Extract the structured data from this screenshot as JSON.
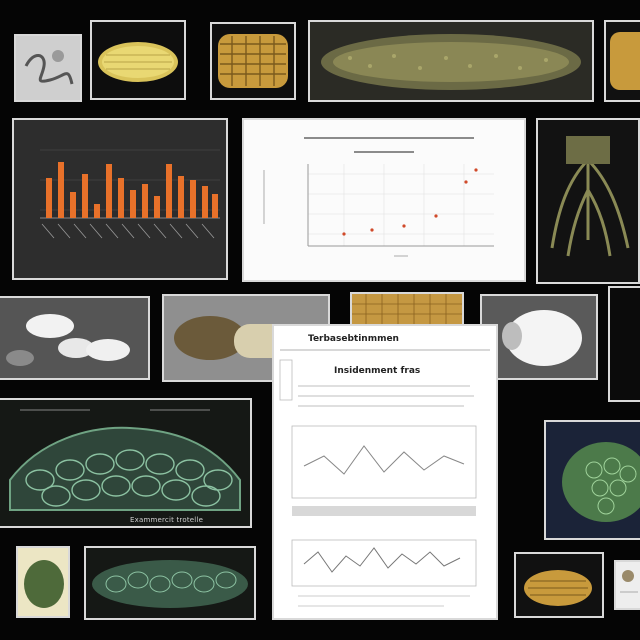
{
  "collage": {
    "background": "#050505",
    "tile_border": "#d9d9d9",
    "orange_bars": "#e8712a",
    "specimen_tone": "#c8a44a",
    "network_tone": "#6fa383"
  },
  "tiles": {
    "top_row": [
      "thumbnail",
      "corn-cob",
      "woven-specimen",
      "long-specimen",
      "specimen-edge"
    ],
    "middle_row": [
      "bar-chart",
      "scatter-plot",
      "root-structure"
    ],
    "third_row": [
      "seed-scan",
      "husk-specimen",
      "mesh-specimen",
      "white-shell"
    ],
    "lower_row": [
      "network-grid",
      "document",
      "green-network"
    ],
    "bottom_row": [
      "green-leaf",
      "mesh-strip",
      "corn-small",
      "small-card"
    ]
  },
  "document": {
    "title": "Insidenment fras",
    "heading": "Terbasebtinmmen"
  },
  "captions": {
    "network_label": "Exammercit trotelle"
  }
}
